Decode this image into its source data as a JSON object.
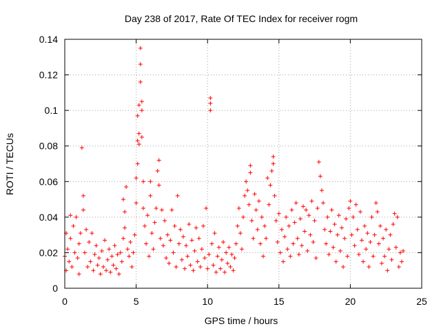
{
  "chart_data": {
    "type": "scatter",
    "title": "Day 238 of 2017, Rate Of TEC Index for receiver rogm",
    "xlabel": "GPS time / hours",
    "ylabel": "ROTI / TECUs",
    "xlim": [
      0,
      25
    ],
    "ylim": [
      0,
      0.14
    ],
    "x_ticks": [
      "0",
      "5",
      "10",
      "15",
      "20",
      "25"
    ],
    "y_ticks": [
      "0",
      "0.02",
      "0.04",
      "0.06",
      "0.08",
      "0.1",
      "0.12",
      "0.14"
    ],
    "grid": true,
    "marker": "+",
    "color": "#ff0000",
    "series": [
      {
        "points": [
          [
            0.0,
            0.018
          ],
          [
            0.1,
            0.031
          ],
          [
            0.1,
            0.01
          ],
          [
            0.2,
            0.022
          ],
          [
            0.3,
            0.015
          ],
          [
            0.4,
            0.028
          ],
          [
            0.4,
            0.041
          ],
          [
            0.5,
            0.012
          ],
          [
            0.6,
            0.035
          ],
          [
            0.7,
            0.02
          ],
          [
            0.8,
            0.04
          ],
          [
            0.9,
            0.017
          ],
          [
            1.0,
            0.025
          ],
          [
            1.0,
            0.008
          ],
          [
            1.1,
            0.031
          ],
          [
            1.2,
            0.079
          ],
          [
            1.3,
            0.052
          ],
          [
            1.3,
            0.044
          ],
          [
            1.4,
            0.02
          ],
          [
            1.5,
            0.033
          ],
          [
            1.6,
            0.012
          ],
          [
            1.7,
            0.026
          ],
          [
            1.8,
            0.015
          ],
          [
            1.9,
            0.031
          ],
          [
            2.0,
            0.01
          ],
          [
            2.1,
            0.019
          ],
          [
            2.2,
            0.024
          ],
          [
            2.3,
            0.013
          ],
          [
            2.4,
            0.017
          ],
          [
            2.5,
            0.008
          ],
          [
            2.6,
            0.021
          ],
          [
            2.7,
            0.012
          ],
          [
            2.8,
            0.027
          ],
          [
            2.9,
            0.01
          ],
          [
            3.0,
            0.016
          ],
          [
            3.1,
            0.022
          ],
          [
            3.2,
            0.009
          ],
          [
            3.3,
            0.018
          ],
          [
            3.4,
            0.013
          ],
          [
            3.5,
            0.024
          ],
          [
            3.6,
            0.011
          ],
          [
            3.7,
            0.019
          ],
          [
            3.8,
            0.008
          ],
          [
            3.9,
            0.02
          ],
          [
            4.0,
            0.015
          ],
          [
            4.1,
            0.028
          ],
          [
            4.1,
            0.05
          ],
          [
            4.2,
            0.043
          ],
          [
            4.2,
            0.034
          ],
          [
            4.3,
            0.057
          ],
          [
            4.4,
            0.022
          ],
          [
            4.5,
            0.018
          ],
          [
            4.6,
            0.026
          ],
          [
            4.7,
            0.012
          ],
          [
            4.8,
            0.02
          ],
          [
            4.9,
            0.03
          ],
          [
            5.0,
            0.048
          ],
          [
            5.0,
            0.062
          ],
          [
            5.1,
            0.07
          ],
          [
            5.1,
            0.083
          ],
          [
            5.1,
            0.097
          ],
          [
            5.2,
            0.087
          ],
          [
            5.2,
            0.103
          ],
          [
            5.2,
            0.081
          ],
          [
            5.3,
            0.126
          ],
          [
            5.3,
            0.135
          ],
          [
            5.3,
            0.116
          ],
          [
            5.4,
            0.105
          ],
          [
            5.4,
            0.1
          ],
          [
            5.4,
            0.085
          ],
          [
            5.5,
            0.06
          ],
          [
            5.5,
            0.045
          ],
          [
            5.6,
            0.035
          ],
          [
            5.7,
            0.025
          ],
          [
            5.8,
            0.041
          ],
          [
            5.9,
            0.018
          ],
          [
            6.0,
            0.052
          ],
          [
            6.0,
            0.06
          ],
          [
            6.1,
            0.031
          ],
          [
            6.2,
            0.022
          ],
          [
            6.3,
            0.037
          ],
          [
            6.4,
            0.045
          ],
          [
            6.5,
            0.066
          ],
          [
            6.6,
            0.072
          ],
          [
            6.6,
            0.058
          ],
          [
            6.7,
            0.028
          ],
          [
            6.8,
            0.044
          ],
          [
            6.9,
            0.024
          ],
          [
            7.0,
            0.038
          ],
          [
            7.1,
            0.017
          ],
          [
            7.2,
            0.03
          ],
          [
            7.3,
            0.014
          ],
          [
            7.4,
            0.027
          ],
          [
            7.5,
            0.044
          ],
          [
            7.6,
            0.02
          ],
          [
            7.7,
            0.035
          ],
          [
            7.8,
            0.012
          ],
          [
            7.9,
            0.052
          ],
          [
            8.0,
            0.025
          ],
          [
            8.1,
            0.033
          ],
          [
            8.2,
            0.016
          ],
          [
            8.3,
            0.029
          ],
          [
            8.4,
            0.011
          ],
          [
            8.5,
            0.024
          ],
          [
            8.6,
            0.018
          ],
          [
            8.7,
            0.036
          ],
          [
            8.8,
            0.013
          ],
          [
            8.9,
            0.027
          ],
          [
            9.0,
            0.01
          ],
          [
            9.1,
            0.021
          ],
          [
            9.2,
            0.034
          ],
          [
            9.3,
            0.015
          ],
          [
            9.4,
            0.028
          ],
          [
            9.5,
            0.012
          ],
          [
            9.6,
            0.022
          ],
          [
            9.7,
            0.035
          ],
          [
            9.8,
            0.017
          ],
          [
            9.9,
            0.045
          ],
          [
            10.0,
            0.011
          ],
          [
            10.1,
            0.019
          ],
          [
            10.2,
            0.1
          ],
          [
            10.2,
            0.107
          ],
          [
            10.2,
            0.104
          ],
          [
            10.3,
            0.025
          ],
          [
            10.4,
            0.013
          ],
          [
            10.5,
            0.031
          ],
          [
            10.6,
            0.009
          ],
          [
            10.7,
            0.018
          ],
          [
            10.8,
            0.023
          ],
          [
            10.9,
            0.011
          ],
          [
            11.0,
            0.016
          ],
          [
            11.1,
            0.026
          ],
          [
            11.2,
            0.009
          ],
          [
            11.3,
            0.02
          ],
          [
            11.4,
            0.014
          ],
          [
            11.5,
            0.023
          ],
          [
            11.6,
            0.012
          ],
          [
            11.7,
            0.019
          ],
          [
            11.8,
            0.01
          ],
          [
            11.9,
            0.017
          ],
          [
            12.0,
            0.025
          ],
          [
            12.1,
            0.035
          ],
          [
            12.2,
            0.045
          ],
          [
            12.3,
            0.031
          ],
          [
            12.4,
            0.022
          ],
          [
            12.5,
            0.04
          ],
          [
            12.6,
            0.052
          ],
          [
            12.7,
            0.06
          ],
          [
            12.8,
            0.055
          ],
          [
            12.9,
            0.047
          ],
          [
            13.0,
            0.069
          ],
          [
            13.0,
            0.065
          ],
          [
            13.1,
            0.038
          ],
          [
            13.2,
            0.028
          ],
          [
            13.3,
            0.053
          ],
          [
            13.4,
            0.044
          ],
          [
            13.5,
            0.033
          ],
          [
            13.6,
            0.049
          ],
          [
            13.7,
            0.025
          ],
          [
            13.8,
            0.04
          ],
          [
            13.9,
            0.018
          ],
          [
            14.0,
            0.035
          ],
          [
            14.1,
            0.028
          ],
          [
            14.2,
            0.062
          ],
          [
            14.3,
            0.047
          ],
          [
            14.4,
            0.058
          ],
          [
            14.5,
            0.066
          ],
          [
            14.6,
            0.074
          ],
          [
            14.6,
            0.07
          ],
          [
            14.7,
            0.052
          ],
          [
            14.8,
            0.038
          ],
          [
            14.9,
            0.026
          ],
          [
            15.0,
            0.042
          ],
          [
            15.1,
            0.02
          ],
          [
            15.2,
            0.033
          ],
          [
            15.3,
            0.015
          ],
          [
            15.4,
            0.029
          ],
          [
            15.5,
            0.04
          ],
          [
            15.6,
            0.022
          ],
          [
            15.7,
            0.035
          ],
          [
            15.8,
            0.018
          ],
          [
            15.9,
            0.044
          ],
          [
            16.0,
            0.025
          ],
          [
            16.1,
            0.037
          ],
          [
            16.2,
            0.048
          ],
          [
            16.3,
            0.028
          ],
          [
            16.4,
            0.019
          ],
          [
            16.5,
            0.039
          ],
          [
            16.6,
            0.024
          ],
          [
            16.7,
            0.046
          ],
          [
            16.8,
            0.032
          ],
          [
            16.9,
            0.044
          ],
          [
            17.0,
            0.021
          ],
          [
            17.1,
            0.041
          ],
          [
            17.2,
            0.03
          ],
          [
            17.3,
            0.049
          ],
          [
            17.4,
            0.026
          ],
          [
            17.5,
            0.038
          ],
          [
            17.6,
            0.017
          ],
          [
            17.7,
            0.045
          ],
          [
            17.8,
            0.071
          ],
          [
            17.9,
            0.063
          ],
          [
            18.0,
            0.055
          ],
          [
            18.1,
            0.048
          ],
          [
            18.2,
            0.033
          ],
          [
            18.3,
            0.025
          ],
          [
            18.4,
            0.04
          ],
          [
            18.5,
            0.019
          ],
          [
            18.6,
            0.032
          ],
          [
            18.7,
            0.044
          ],
          [
            18.8,
            0.023
          ],
          [
            18.9,
            0.036
          ],
          [
            19.0,
            0.015
          ],
          [
            19.1,
            0.03
          ],
          [
            19.2,
            0.041
          ],
          [
            19.3,
            0.021
          ],
          [
            19.4,
            0.034
          ],
          [
            19.5,
            0.012
          ],
          [
            19.6,
            0.028
          ],
          [
            19.7,
            0.039
          ],
          [
            19.8,
            0.018
          ],
          [
            19.9,
            0.045
          ],
          [
            20.0,
            0.049
          ],
          [
            20.1,
            0.03
          ],
          [
            20.2,
            0.04
          ],
          [
            20.3,
            0.024
          ],
          [
            20.4,
            0.047
          ],
          [
            20.5,
            0.033
          ],
          [
            20.6,
            0.019
          ],
          [
            20.7,
            0.043
          ],
          [
            20.8,
            0.027
          ],
          [
            20.9,
            0.015
          ],
          [
            21.0,
            0.035
          ],
          [
            21.1,
            0.022
          ],
          [
            21.2,
            0.031
          ],
          [
            21.3,
            0.012
          ],
          [
            21.4,
            0.026
          ],
          [
            21.5,
            0.04
          ],
          [
            21.6,
            0.018
          ],
          [
            21.7,
            0.03
          ],
          [
            21.8,
            0.048
          ],
          [
            21.9,
            0.043
          ],
          [
            22.0,
            0.025
          ],
          [
            22.1,
            0.035
          ],
          [
            22.2,
            0.014
          ],
          [
            22.3,
            0.028
          ],
          [
            22.4,
            0.018
          ],
          [
            22.5,
            0.033
          ],
          [
            22.6,
            0.01
          ],
          [
            22.7,
            0.022
          ],
          [
            22.8,
            0.03
          ],
          [
            22.9,
            0.016
          ],
          [
            23.0,
            0.036
          ],
          [
            23.1,
            0.042
          ],
          [
            23.2,
            0.023
          ],
          [
            23.3,
            0.04
          ],
          [
            23.4,
            0.012
          ],
          [
            23.5,
            0.02
          ],
          [
            23.6,
            0.015
          ],
          [
            23.7,
            0.021
          ]
        ]
      }
    ]
  }
}
